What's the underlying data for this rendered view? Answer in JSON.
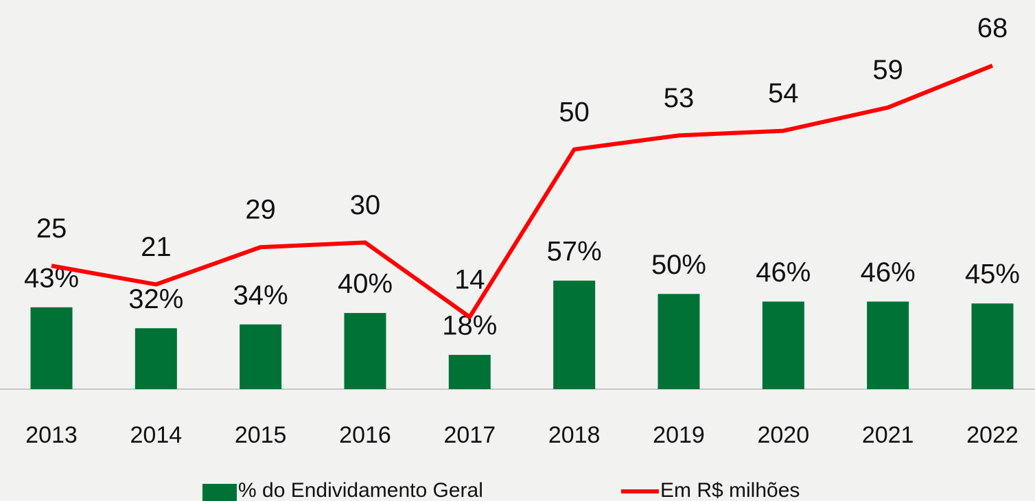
{
  "chart_data": {
    "type": "combo",
    "categories": [
      "2013",
      "2014",
      "2015",
      "2016",
      "2017",
      "2018",
      "2019",
      "2020",
      "2021",
      "2022"
    ],
    "series": [
      {
        "name": "% do Endividamento Geral",
        "type": "bar",
        "color": "#007236",
        "values": [
          43,
          32,
          34,
          40,
          18,
          57,
          50,
          46,
          46,
          45
        ],
        "value_labels": [
          "43%",
          "32%",
          "34%",
          "40%",
          "18%",
          "57%",
          "50%",
          "46%",
          "46%",
          "45%"
        ]
      },
      {
        "name": "Em R$ milhões",
        "type": "line",
        "color": "#ff0000",
        "axis": "y2",
        "values": [
          25,
          21,
          29,
          30,
          14,
          50,
          53,
          54,
          59,
          68
        ]
      }
    ],
    "ylim": [
      0,
      190
    ],
    "y2lim": [
      -1.5,
      76.2
    ],
    "legend": "bottom"
  }
}
